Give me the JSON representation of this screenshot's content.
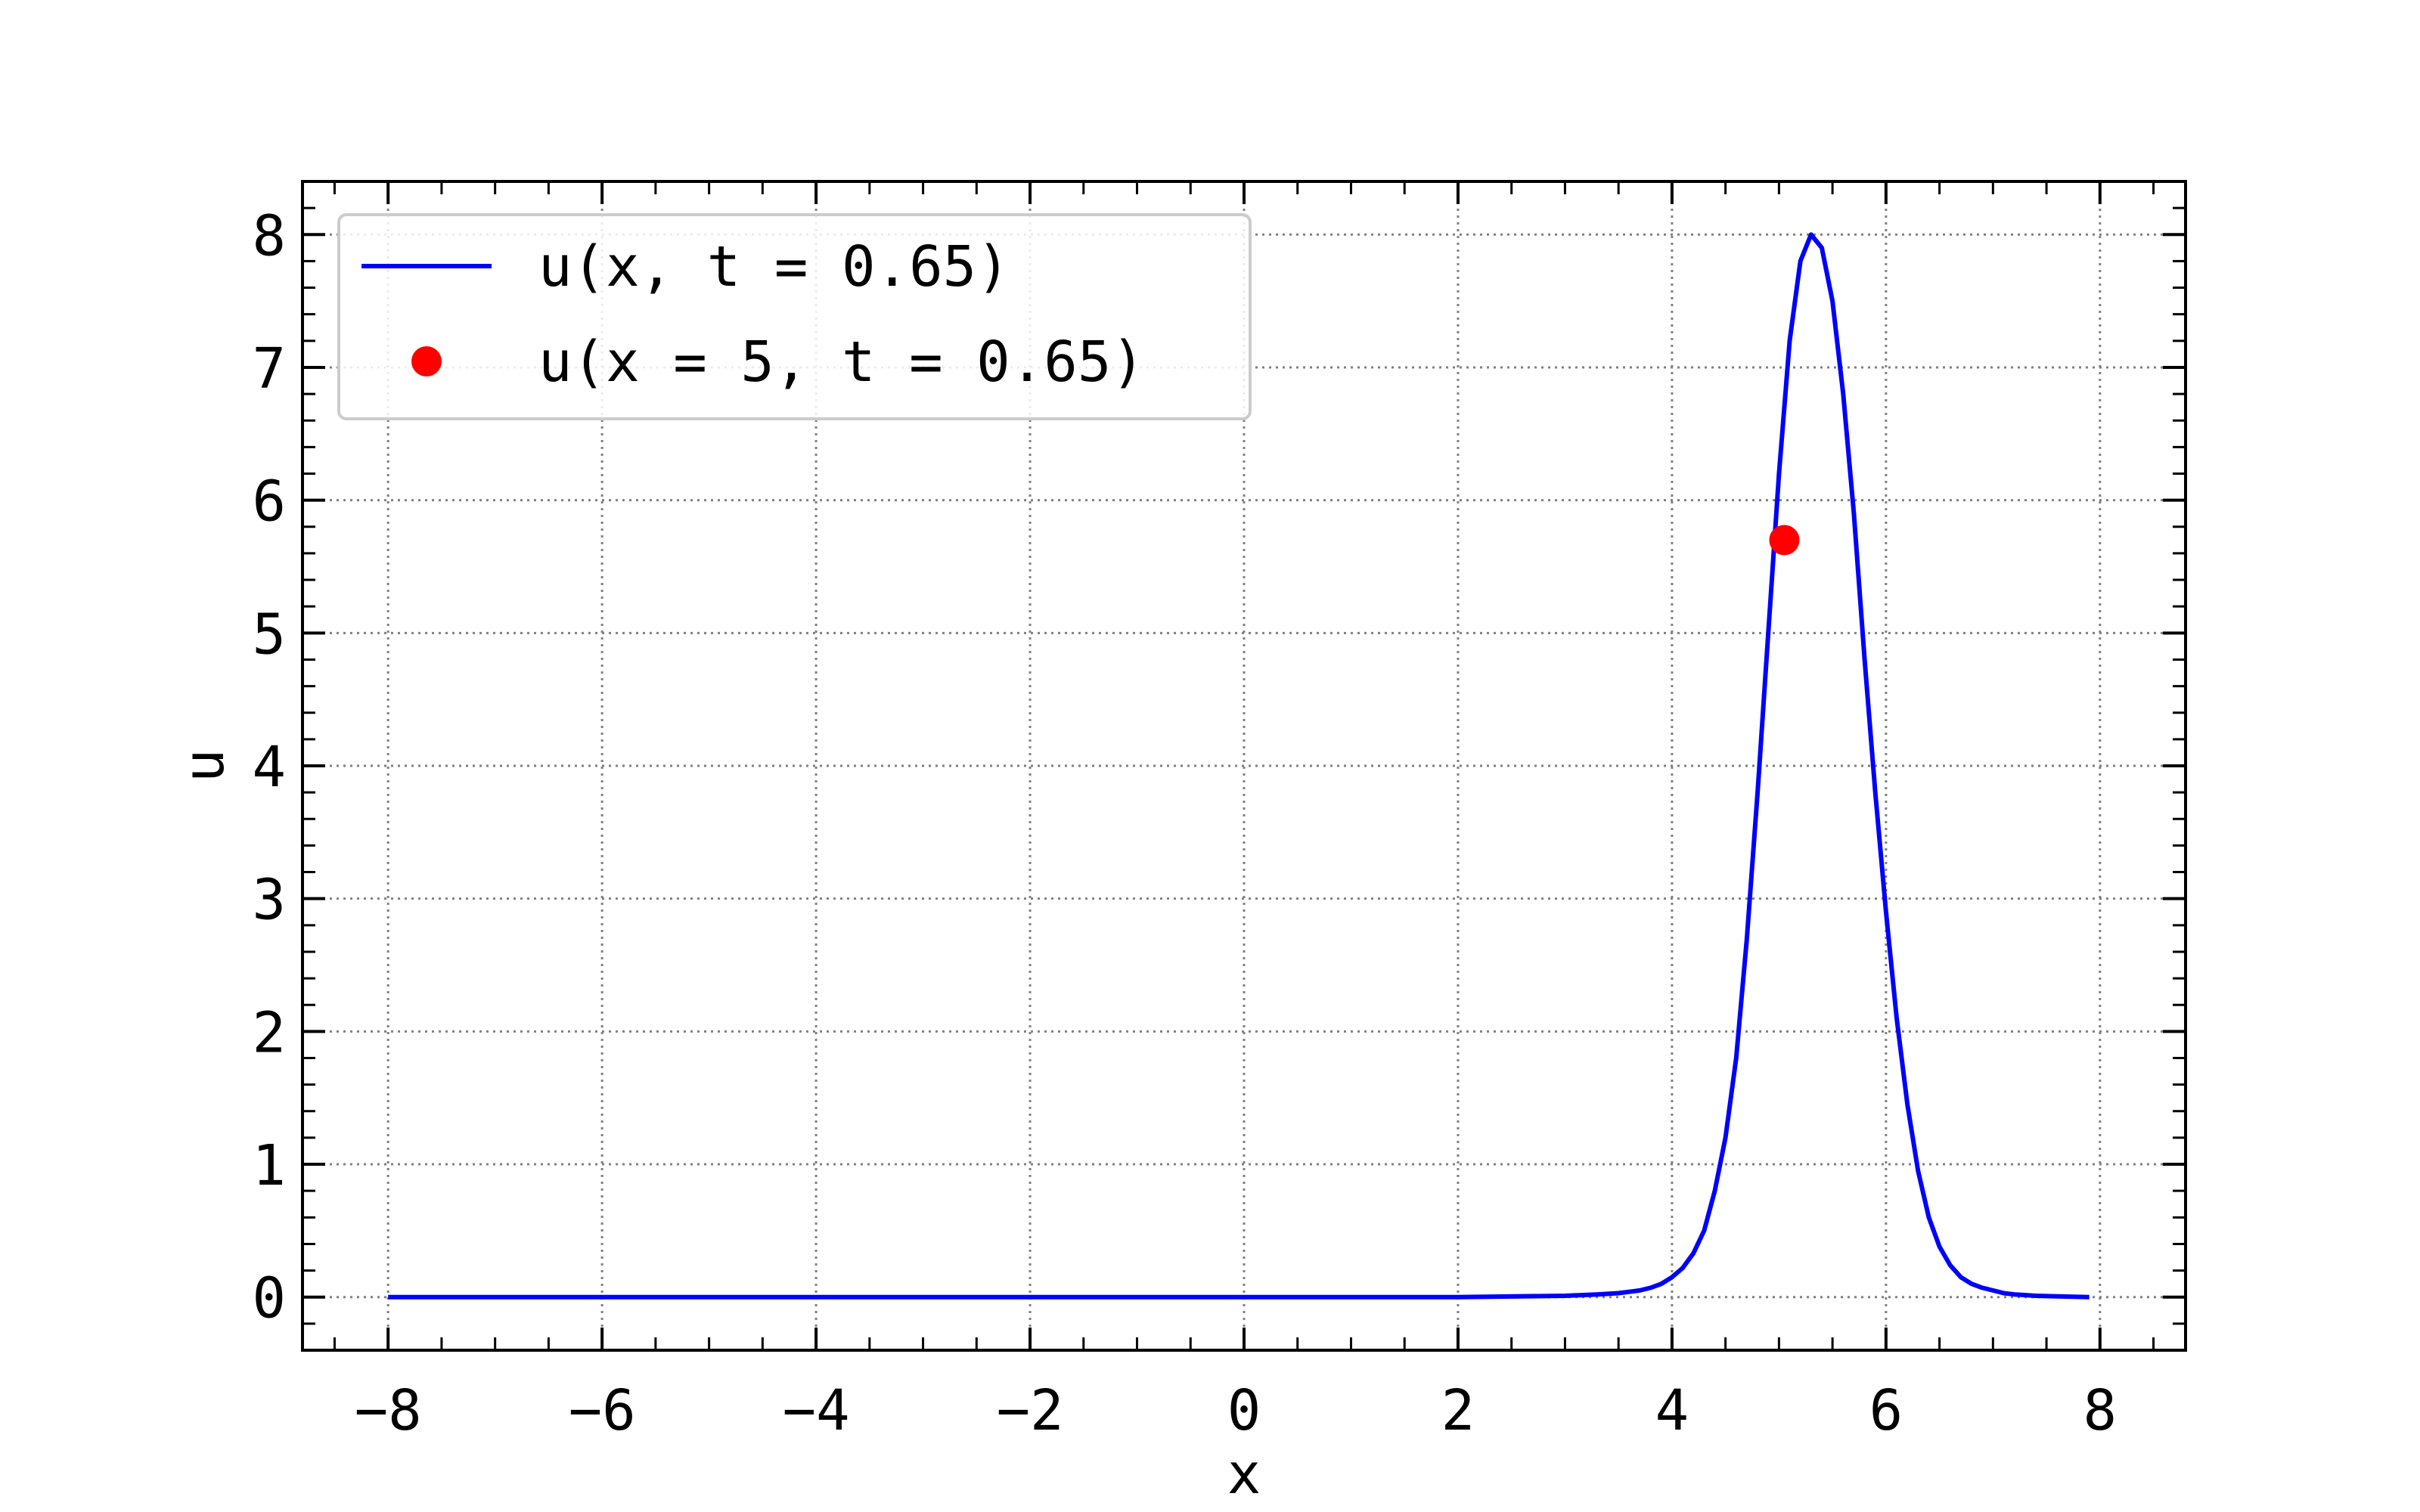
{
  "chart_data": {
    "type": "line",
    "title": "",
    "xlabel": "x",
    "ylabel": "u",
    "xlim": [
      -8.8,
      8.8
    ],
    "ylim": [
      -0.4,
      8.4
    ],
    "grid": true,
    "grid_style": "dotted",
    "legend_position": "upper-left",
    "x_ticks": [
      -8,
      -6,
      -4,
      -2,
      0,
      2,
      4,
      6,
      8
    ],
    "x_tick_labels": [
      "−8",
      "−6",
      "−4",
      "−2",
      "0",
      "2",
      "4",
      "6",
      "8"
    ],
    "y_ticks": [
      0,
      1,
      2,
      3,
      4,
      5,
      6,
      7,
      8
    ],
    "y_tick_labels": [
      "0",
      "1",
      "2",
      "3",
      "4",
      "5",
      "6",
      "7",
      "8"
    ],
    "series": [
      {
        "name": "u(x, t = 0.65)",
        "kind": "line",
        "color": "#0000ff",
        "x": [
          -8,
          -4,
          0,
          2,
          3,
          3.3,
          3.5,
          3.7,
          3.8,
          3.9,
          4.0,
          4.1,
          4.2,
          4.3,
          4.4,
          4.5,
          4.6,
          4.7,
          4.8,
          4.9,
          5.0,
          5.1,
          5.2,
          5.3,
          5.4,
          5.5,
          5.6,
          5.7,
          5.8,
          5.9,
          6.0,
          6.1,
          6.2,
          6.3,
          6.4,
          6.5,
          6.6,
          6.7,
          6.8,
          6.9,
          7.0,
          7.1,
          7.2,
          7.4,
          7.6,
          7.9
        ],
        "y": [
          0,
          0,
          0,
          0,
          0.01,
          0.02,
          0.03,
          0.05,
          0.07,
          0.1,
          0.15,
          0.22,
          0.33,
          0.5,
          0.8,
          1.2,
          1.8,
          2.7,
          3.8,
          5.0,
          6.2,
          7.2,
          7.8,
          8.0,
          7.9,
          7.5,
          6.8,
          5.9,
          4.8,
          3.8,
          2.9,
          2.1,
          1.45,
          0.95,
          0.6,
          0.38,
          0.24,
          0.15,
          0.1,
          0.07,
          0.05,
          0.03,
          0.02,
          0.01,
          0.005,
          0
        ]
      },
      {
        "name": "u(x = 5, t = 0.65)",
        "kind": "point",
        "color": "#ff0000",
        "x": [
          5.05
        ],
        "y": [
          5.7
        ]
      }
    ]
  }
}
